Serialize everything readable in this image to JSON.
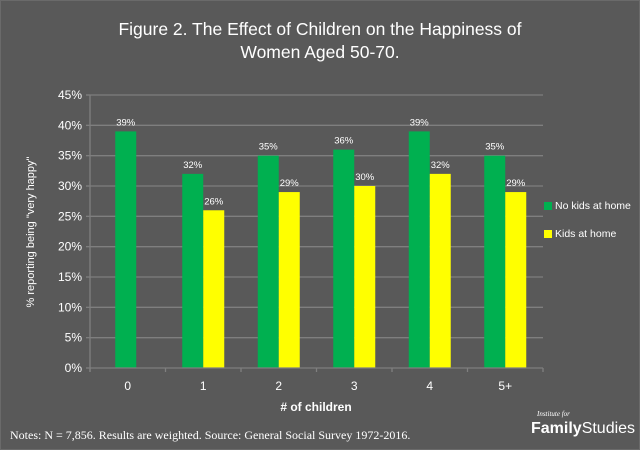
{
  "chart_data": {
    "type": "bar",
    "title": "Figure 2. The Effect of Children on the Happiness of Women Aged 50-70.",
    "title_lines": [
      "Figure 2. The Effect of Children on the Happiness of",
      "Women Aged 50-70."
    ],
    "xlabel": "# of children",
    "ylabel": "% reporting being \"very happy\"",
    "categories": [
      "0",
      "1",
      "2",
      "3",
      "4",
      "5+"
    ],
    "series": [
      {
        "name": "No kids at home",
        "color": "#00b050",
        "values": [
          39,
          32,
          35,
          36,
          39,
          35
        ]
      },
      {
        "name": "Kids at home",
        "color": "#ffff00",
        "values": [
          null,
          26,
          29,
          30,
          32,
          29
        ]
      }
    ],
    "ylim": [
      0,
      45
    ],
    "yticks": [
      0,
      5,
      10,
      15,
      20,
      25,
      30,
      35,
      40,
      45
    ],
    "ytick_labels": [
      "0%",
      "5%",
      "10%",
      "15%",
      "20%",
      "25%",
      "30%",
      "35%",
      "40%",
      "45%"
    ],
    "value_suffix": "%",
    "grid": true,
    "legend_position": "right"
  },
  "notes": "Notes: N = 7,856. Results are weighted. Source: General Social Survey 1972-2016.",
  "logo": {
    "small": "Institute for",
    "bold": "Family",
    "regular": "Studies"
  },
  "colors": {
    "background": "#595959",
    "grid": "#7f7f7f",
    "text": "#ffffff"
  }
}
